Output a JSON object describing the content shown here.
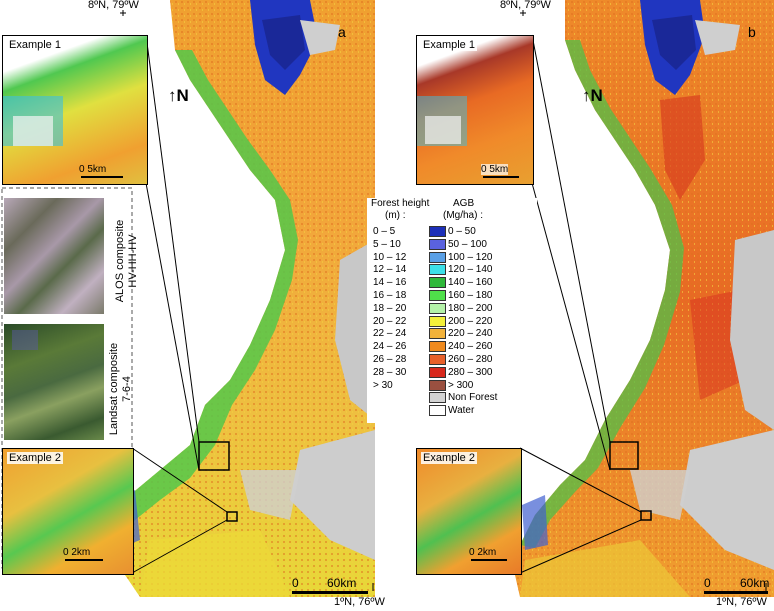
{
  "panels": [
    {
      "letter": "a",
      "top_coord": "8ºN, 79ºW",
      "bottom_coord": "1ºN, 76ºW",
      "example1_label": "Example 1",
      "example1_scale": "0    5km",
      "example2_label": "Example 2",
      "example2_scale": "0    2km",
      "scale_zero": "0",
      "scale_km": "60km",
      "north": "↑N"
    },
    {
      "letter": "b",
      "top_coord": "8ºN, 79ºW",
      "bottom_coord": "1ºN, 76ºW",
      "example1_label": "Example 1",
      "example1_scale": "0    5km",
      "example2_label": "Example 2",
      "example2_scale": "0    2km",
      "scale_zero": "0",
      "scale_km": "60km",
      "north": "↑N"
    }
  ],
  "composites": {
    "alos_line1": "ALOS composite",
    "alos_line2": "HV-HH-HV",
    "landsat_line1": "Landsat composite",
    "landsat_line2": "7-6-4"
  },
  "legend": {
    "height_header_line1": "Forest height",
    "height_header_line2": "(m) :",
    "agb_header_line1": "AGB",
    "agb_header_line2": "(Mg/ha) :",
    "rows": [
      {
        "height": "0 – 5",
        "agb": "0 – 50",
        "color": "#1c2fb8"
      },
      {
        "height": "5 – 10",
        "agb": "50 – 100",
        "color": "#5a62e0"
      },
      {
        "height": "10 – 12",
        "agb": "100 – 120",
        "color": "#5aa0e6"
      },
      {
        "height": "12 – 14",
        "agb": "120 – 140",
        "color": "#3ce0e8"
      },
      {
        "height": "14 – 16",
        "agb": "140 – 160",
        "color": "#2fb83a"
      },
      {
        "height": "16 – 18",
        "agb": "160 – 180",
        "color": "#4fe04a"
      },
      {
        "height": "18 – 20",
        "agb": "180 – 200",
        "color": "#b4f2a8"
      },
      {
        "height": "20 – 22",
        "agb": "200 – 220",
        "color": "#f4f03a"
      },
      {
        "height": "22 – 24",
        "agb": "220 – 240",
        "color": "#f2b23a"
      },
      {
        "height": "24 – 26",
        "agb": "240 – 260",
        "color": "#f08a1e"
      },
      {
        "height": "26 – 28",
        "agb": "260 – 280",
        "color": "#e8602a"
      },
      {
        "height": "28 – 30",
        "agb": "280 – 300",
        "color": "#d8281c"
      },
      {
        "height": "> 30",
        "agb": "> 300",
        "color": "#9a5040"
      },
      {
        "height": "",
        "agb": "Non Forest",
        "color": "#d4d4d4"
      },
      {
        "height": "",
        "agb": "Water",
        "color": "#ffffff"
      }
    ]
  },
  "colors": {
    "water": "#ffffff",
    "nonforest": "#c8c8c8",
    "orange": "#f0a030",
    "yellow": "#e8e030",
    "green": "#40c040",
    "blue": "#2030b0",
    "red": "#e05020"
  }
}
